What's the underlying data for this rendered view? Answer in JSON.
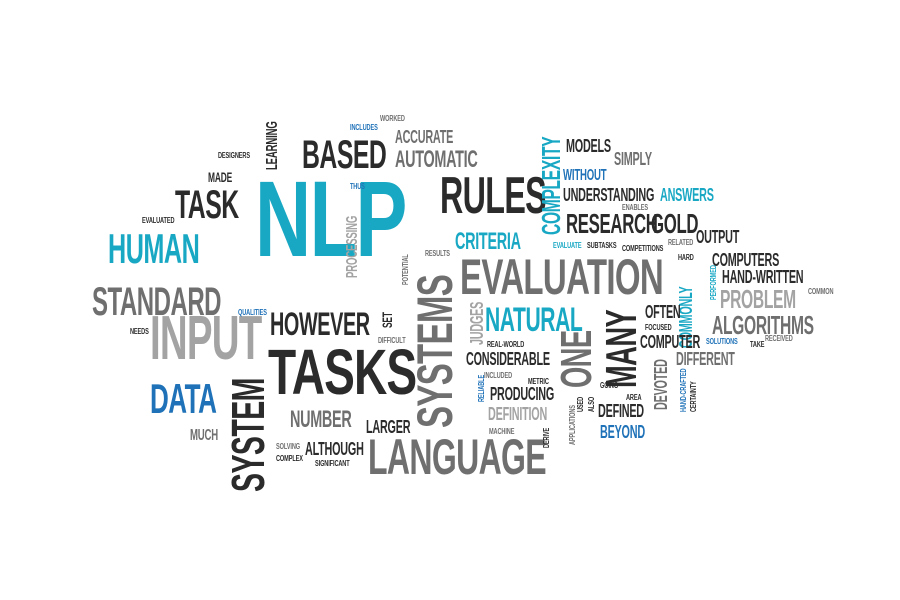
{
  "title": "",
  "colors": {
    "dark": "#2b2b2b",
    "mid": "#6f6f6f",
    "light": "#a3a3a3",
    "teal": "#19a8c4",
    "blue": "#1f72b8",
    "background": "#ffffff"
  },
  "words": [
    {
      "id": "nlp",
      "text": "NLP",
      "color": "teal",
      "weight": 10
    },
    {
      "id": "tasks",
      "text": "TASKS",
      "color": "dark",
      "weight": 8
    },
    {
      "id": "evaluation",
      "text": "EVALUATION",
      "color": "mid",
      "weight": 7
    },
    {
      "id": "systems",
      "text": "SYSTEMS",
      "color": "mid",
      "weight": 7
    },
    {
      "id": "input",
      "text": "INPUT",
      "color": "light",
      "weight": 7
    },
    {
      "id": "language",
      "text": "LANGUAGE",
      "color": "mid",
      "weight": 7
    },
    {
      "id": "rules",
      "text": "RULES",
      "color": "dark",
      "weight": 6
    },
    {
      "id": "system",
      "text": "SYSTEM",
      "color": "dark",
      "weight": 6
    },
    {
      "id": "standard",
      "text": "STANDARD",
      "color": "mid",
      "weight": 6
    },
    {
      "id": "human",
      "text": "HUMAN",
      "color": "teal",
      "weight": 6
    },
    {
      "id": "task",
      "text": "TASK",
      "color": "dark",
      "weight": 6
    },
    {
      "id": "based",
      "text": "BASED",
      "color": "dark",
      "weight": 5
    },
    {
      "id": "data",
      "text": "DATA",
      "color": "blue",
      "weight": 5
    },
    {
      "id": "however",
      "text": "HOWEVER",
      "color": "dark",
      "weight": 5
    },
    {
      "id": "many",
      "text": "MANY",
      "color": "dark",
      "weight": 5
    },
    {
      "id": "one",
      "text": "ONE",
      "color": "mid",
      "weight": 5
    },
    {
      "id": "natural",
      "text": "NATURAL",
      "color": "teal",
      "weight": 5
    },
    {
      "id": "automatic",
      "text": "AUTOMATIC",
      "color": "mid",
      "weight": 4
    },
    {
      "id": "complexity",
      "text": "COMPLEXITY",
      "color": "teal",
      "weight": 4
    },
    {
      "id": "research",
      "text": "RESEARCH",
      "color": "dark",
      "weight": 4
    },
    {
      "id": "gold",
      "text": "GOLD",
      "color": "dark",
      "weight": 4
    },
    {
      "id": "criteria",
      "text": "CRITERIA",
      "color": "teal",
      "weight": 4
    },
    {
      "id": "problem",
      "text": "PROBLEM",
      "color": "light",
      "weight": 4
    },
    {
      "id": "algorithms",
      "text": "ALGORITHMS",
      "color": "mid",
      "weight": 4
    },
    {
      "id": "number",
      "text": "NUMBER",
      "color": "mid",
      "weight": 4
    },
    {
      "id": "commonly",
      "text": "COMMONLY",
      "color": "teal",
      "weight": 3
    },
    {
      "id": "judges",
      "text": "JUDGES",
      "color": "light",
      "weight": 3
    },
    {
      "id": "processing",
      "text": "PROCESSING",
      "color": "light",
      "weight": 3
    },
    {
      "id": "learning",
      "text": "LEARNING",
      "color": "dark",
      "weight": 3
    },
    {
      "id": "accurate",
      "text": "ACCURATE",
      "color": "mid",
      "weight": 3
    },
    {
      "id": "models",
      "text": "MODELS",
      "color": "dark",
      "weight": 3
    },
    {
      "id": "simply",
      "text": "SIMPLY",
      "color": "mid",
      "weight": 3
    },
    {
      "id": "without",
      "text": "WITHOUT",
      "color": "blue",
      "weight": 3
    },
    {
      "id": "understanding",
      "text": "UNDERSTANDING",
      "color": "dark",
      "weight": 3
    },
    {
      "id": "answers",
      "text": "ANSWERS",
      "color": "teal",
      "weight": 3
    },
    {
      "id": "output",
      "text": "OUTPUT",
      "color": "dark",
      "weight": 3
    },
    {
      "id": "computers",
      "text": "COMPUTERS",
      "color": "dark",
      "weight": 3
    },
    {
      "id": "hand_written",
      "text": "HAND-WRITTEN",
      "color": "dark",
      "weight": 3
    },
    {
      "id": "often",
      "text": "OFTEN",
      "color": "dark",
      "weight": 3
    },
    {
      "id": "computer",
      "text": "COMPUTER",
      "color": "dark",
      "weight": 3
    },
    {
      "id": "different",
      "text": "DIFFERENT",
      "color": "mid",
      "weight": 3
    },
    {
      "id": "considerable",
      "text": "CONSIDERABLE",
      "color": "dark",
      "weight": 3
    },
    {
      "id": "producing",
      "text": "PRODUCING",
      "color": "dark",
      "weight": 3
    },
    {
      "id": "definition",
      "text": "DEFINITION",
      "color": "light",
      "weight": 3
    },
    {
      "id": "defined",
      "text": "DEFINED",
      "color": "dark",
      "weight": 3
    },
    {
      "id": "beyond",
      "text": "BEYOND",
      "color": "blue",
      "weight": 3
    },
    {
      "id": "devoted",
      "text": "DEVOTED",
      "color": "mid",
      "weight": 3
    },
    {
      "id": "larger",
      "text": "LARGER",
      "color": "dark",
      "weight": 3
    },
    {
      "id": "although",
      "text": "ALTHOUGH",
      "color": "dark",
      "weight": 3
    },
    {
      "id": "much",
      "text": "MUCH",
      "color": "mid",
      "weight": 3
    },
    {
      "id": "made",
      "text": "MADE",
      "color": "dark",
      "weight": 2
    },
    {
      "id": "set",
      "text": "SET",
      "color": "dark",
      "weight": 2
    },
    {
      "id": "designers",
      "text": "DESIGNERS",
      "color": "dark",
      "weight": 1
    },
    {
      "id": "evaluated",
      "text": "EVALUATED",
      "color": "dark",
      "weight": 1
    },
    {
      "id": "needs",
      "text": "NEEDS",
      "color": "dark",
      "weight": 1
    },
    {
      "id": "qualities",
      "text": "QUALITIES",
      "color": "blue",
      "weight": 1
    },
    {
      "id": "thus",
      "text": "THUS",
      "color": "blue",
      "weight": 1
    },
    {
      "id": "includes",
      "text": "INCLUDES",
      "color": "blue",
      "weight": 1
    },
    {
      "id": "worked",
      "text": "WORKED",
      "color": "mid",
      "weight": 1
    },
    {
      "id": "results",
      "text": "RESULTS",
      "color": "mid",
      "weight": 1
    },
    {
      "id": "potential",
      "text": "POTENTIAL",
      "color": "mid",
      "weight": 1
    },
    {
      "id": "difficult",
      "text": "DIFFICULT",
      "color": "mid",
      "weight": 1
    },
    {
      "id": "evaluate",
      "text": "EVALUATE",
      "color": "teal",
      "weight": 1
    },
    {
      "id": "subtasks",
      "text": "SUBTASKS",
      "color": "dark",
      "weight": 1
    },
    {
      "id": "competitions",
      "text": "COMPETITIONS",
      "color": "dark",
      "weight": 1
    },
    {
      "id": "related",
      "text": "RELATED",
      "color": "mid",
      "weight": 1
    },
    {
      "id": "enables",
      "text": "ENABLES",
      "color": "mid",
      "weight": 1
    },
    {
      "id": "hard",
      "text": "HARD",
      "color": "dark",
      "weight": 1
    },
    {
      "id": "performed",
      "text": "PERFORMED",
      "color": "teal",
      "weight": 1
    },
    {
      "id": "common",
      "text": "COMMON",
      "color": "mid",
      "weight": 1
    },
    {
      "id": "focused",
      "text": "FOCUSED",
      "color": "dark",
      "weight": 1
    },
    {
      "id": "solutions",
      "text": "SOLUTIONS",
      "color": "blue",
      "weight": 1
    },
    {
      "id": "take",
      "text": "TAKE",
      "color": "dark",
      "weight": 1
    },
    {
      "id": "received",
      "text": "RECEIVED",
      "color": "mid",
      "weight": 1
    },
    {
      "id": "real_world",
      "text": "REAL-WORLD",
      "color": "dark",
      "weight": 1
    },
    {
      "id": "included",
      "text": "INCLUDED",
      "color": "mid",
      "weight": 1
    },
    {
      "id": "metric",
      "text": "METRIC",
      "color": "dark",
      "weight": 1
    },
    {
      "id": "reliable",
      "text": "RELIABLE",
      "color": "blue",
      "weight": 1
    },
    {
      "id": "going",
      "text": "GOING",
      "color": "dark",
      "weight": 1
    },
    {
      "id": "area",
      "text": "AREA",
      "color": "dark",
      "weight": 1
    },
    {
      "id": "used",
      "text": "USED",
      "color": "dark",
      "weight": 1
    },
    {
      "id": "also",
      "text": "ALSO",
      "color": "dark",
      "weight": 1
    },
    {
      "id": "applications",
      "text": "APPLICATIONS",
      "color": "mid",
      "weight": 1
    },
    {
      "id": "machine",
      "text": "MACHINE",
      "color": "mid",
      "weight": 1
    },
    {
      "id": "derive",
      "text": "DERIVE",
      "color": "dark",
      "weight": 1
    },
    {
      "id": "hand_crafted",
      "text": "HAND-CRAFTED",
      "color": "blue",
      "weight": 1
    },
    {
      "id": "certainty",
      "text": "CERTAINTY",
      "color": "dark",
      "weight": 1
    },
    {
      "id": "solving",
      "text": "SOLVING",
      "color": "mid",
      "weight": 1
    },
    {
      "id": "complex",
      "text": "COMPLEX",
      "color": "dark",
      "weight": 1
    },
    {
      "id": "significant",
      "text": "SIGNIFICANT",
      "color": "dark",
      "weight": 1
    }
  ]
}
